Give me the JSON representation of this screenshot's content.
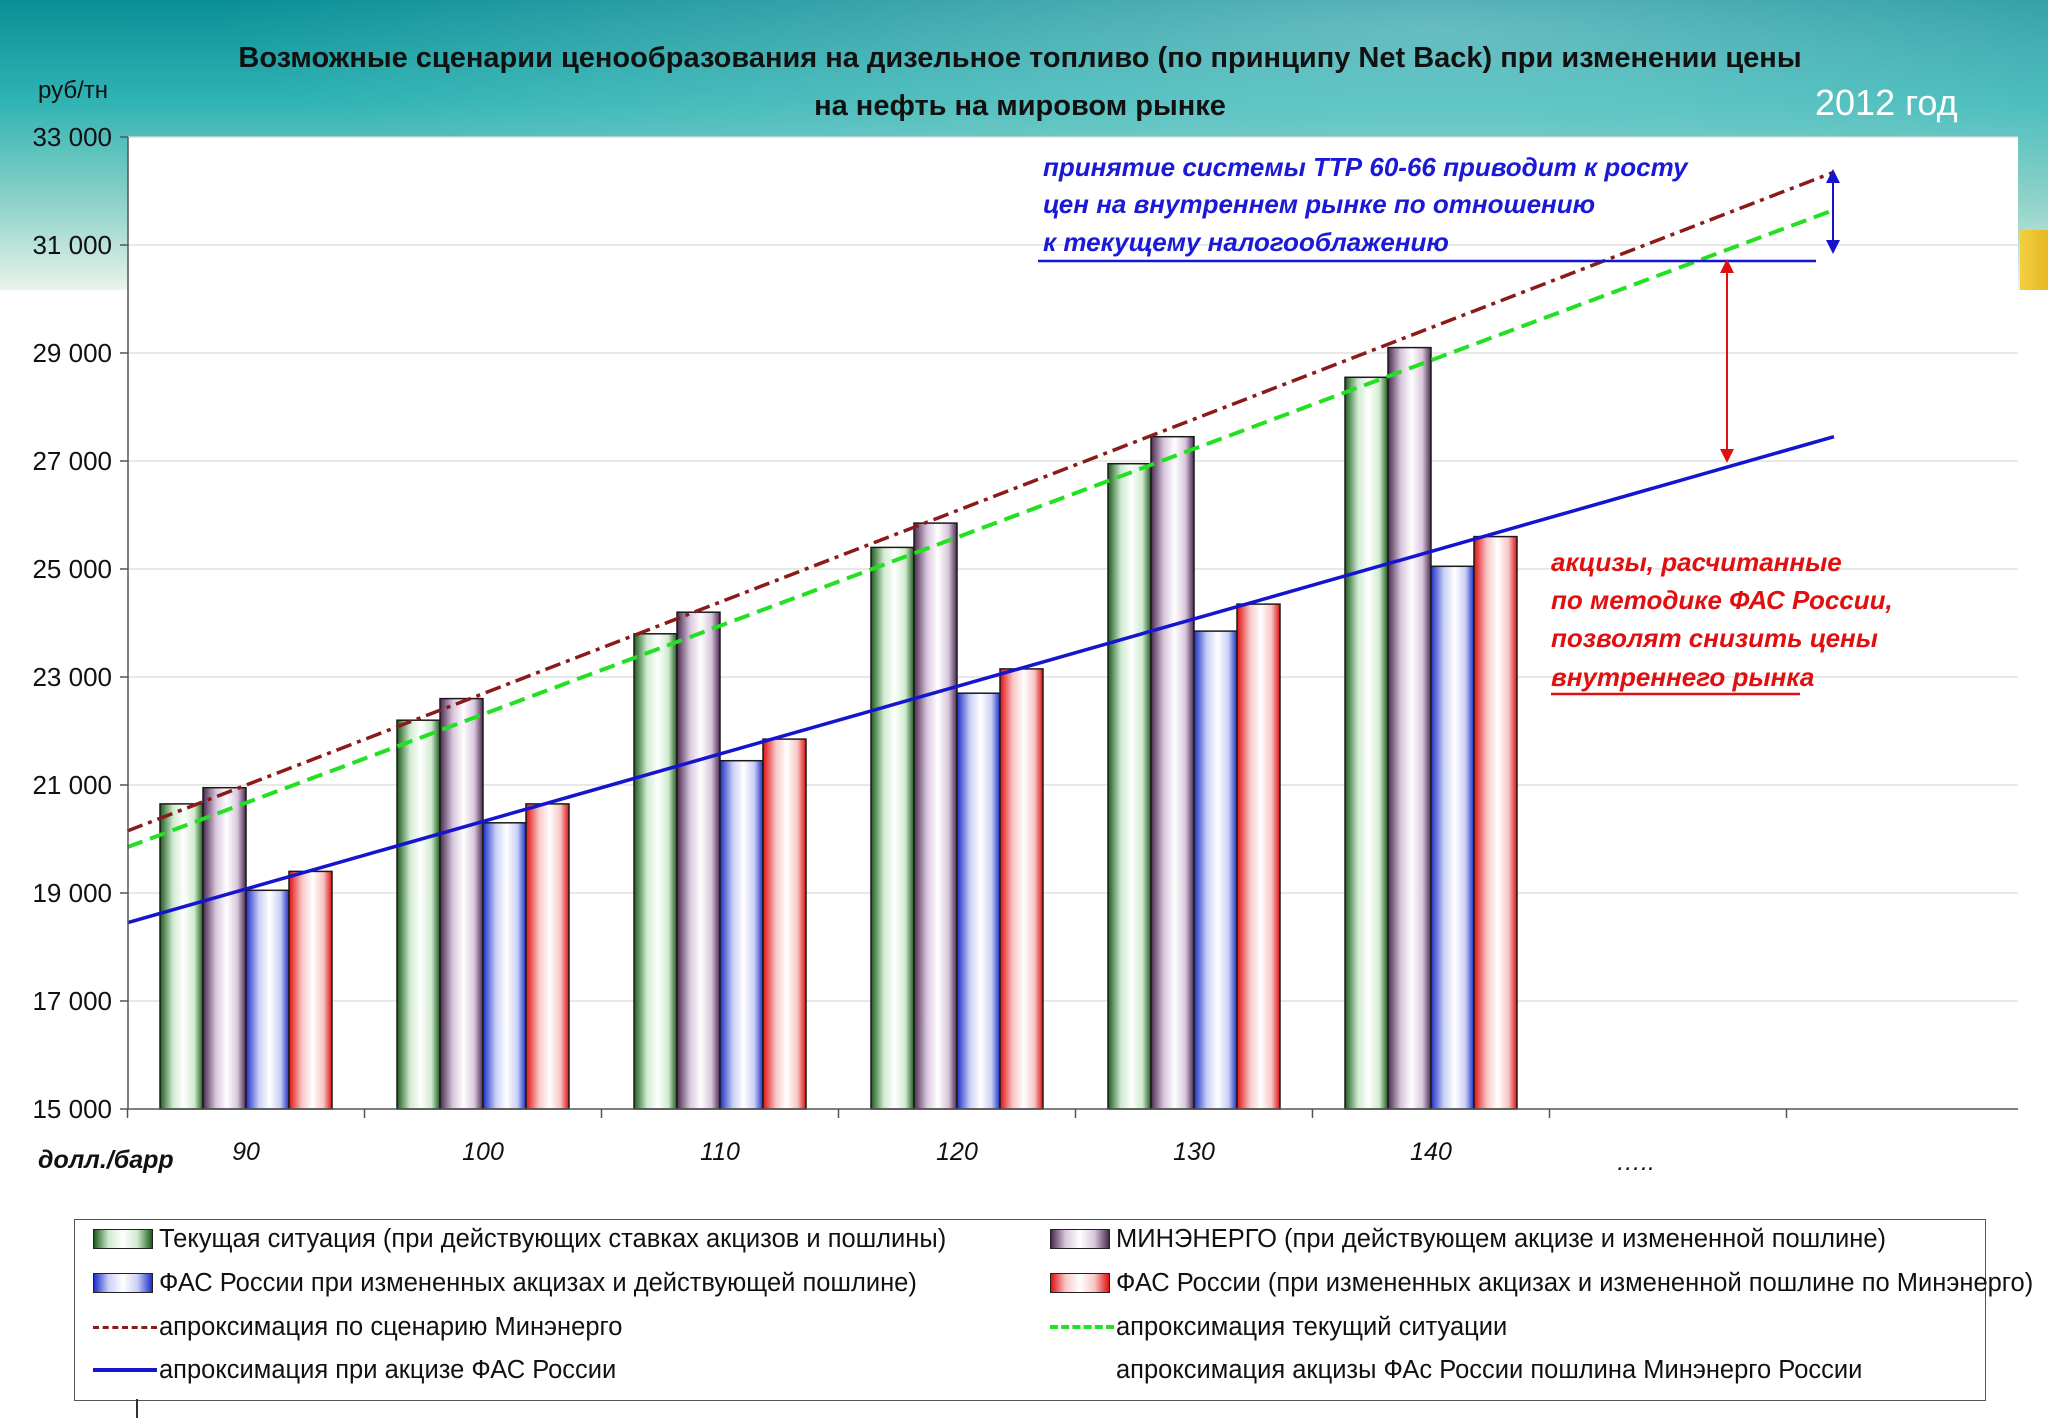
{
  "page": {
    "title": "Возможные сценарии ценообразования на дизельное топливо (по принципу Net Back) при изменении цены на нефть на мировом рынке",
    "year": "2012 год"
  },
  "chart_data": {
    "type": "bar",
    "title": "Возможные сценарии ценообразования на дизельное топливо (по принципу Net Back) при изменении цены на нефть на мировом рынке",
    "ylabel": "руб/тн",
    "xlabel": "долл./барр",
    "ylim": [
      15000,
      33000
    ],
    "yticks": [
      15000,
      17000,
      19000,
      21000,
      23000,
      25000,
      27000,
      29000,
      31000,
      33000
    ],
    "ytick_labels": [
      "15 000",
      "17 000",
      "19 000",
      "21 000",
      "23 000",
      "25 000",
      "27 000",
      "29 000",
      "31 000",
      "33 000"
    ],
    "categories": [
      "90",
      "100",
      "110",
      "120",
      "130",
      "140"
    ],
    "extra_category_label": "…..",
    "grid": true,
    "legend_position": "bottom",
    "series": [
      {
        "name": "Текущая ситуация (при действующих ставках акцизов и пошлины)",
        "color": "#1d5c1d",
        "values": [
          20650,
          22200,
          23800,
          25400,
          26950,
          28550
        ]
      },
      {
        "name": "МИНЭНЕРГО (при действующем акцизе и измененной пошлине)",
        "color": "#4a2a4e",
        "values": [
          20950,
          22600,
          24200,
          25850,
          27450,
          29100
        ]
      },
      {
        "name": "ФАС России при измененных акцизах и действующей пошлине)",
        "color": "#1d2fc8",
        "values": [
          19050,
          20300,
          21450,
          22700,
          23850,
          25050
        ]
      },
      {
        "name": "ФАС России (при измененных акцизах и измененной пошлине по Минэнерго)",
        "color": "#e01010",
        "values": [
          19400,
          20650,
          21850,
          23150,
          24350,
          25600
        ]
      }
    ],
    "trendlines": [
      {
        "name": "апроксимация по сценарию Минэнерго",
        "color": "#8b1a1a",
        "style": "dash-dot",
        "x": [
          85,
          157
        ],
        "y": [
          20150,
          32350
        ]
      },
      {
        "name": "апроксимация текущий ситуации",
        "color": "#22e022",
        "style": "dashed",
        "x": [
          85,
          157
        ],
        "y": [
          19850,
          31650
        ]
      },
      {
        "name": "апроксимация при акцизе ФАС России",
        "color": "#1515d0",
        "style": "solid",
        "x": [
          85,
          157
        ],
        "y": [
          18450,
          27450
        ]
      }
    ],
    "annotations": {
      "blue": [
        "принятие системы ТТР 60-66 приводит к росту",
        "цен на внутреннем рынке по отношению",
        "к текущему налогооблажению"
      ],
      "red": [
        "акцизы, расчитанные",
        "по методике ФАС России,",
        "позволят снизить цены",
        "внутреннего рынка"
      ]
    }
  },
  "legend": {
    "items": [
      {
        "label": "Текущая ситуация (при действующих ставках акцизов и пошлины)",
        "kind": "bar"
      },
      {
        "label": "МИНЭНЕРГО (при действующем акцизе и измененной пошлине)",
        "kind": "bar"
      },
      {
        "label": "ФАС России при измененных акцизах и действующей пошлине)",
        "kind": "bar"
      },
      {
        "label": "ФАС России (при измененных акцизах и измененной пошлине по Минэнерго)",
        "kind": "bar"
      },
      {
        "label": "апроксимация по сценарию Минэнерго",
        "kind": "line"
      },
      {
        "label": "апроксимация текущий ситуации",
        "kind": "line"
      },
      {
        "label": "апроксимация при акцизе ФАС России",
        "kind": "line"
      },
      {
        "label": "апроксимация акцизы ФАс России пошлина Минэнерго России",
        "kind": "none"
      }
    ]
  }
}
